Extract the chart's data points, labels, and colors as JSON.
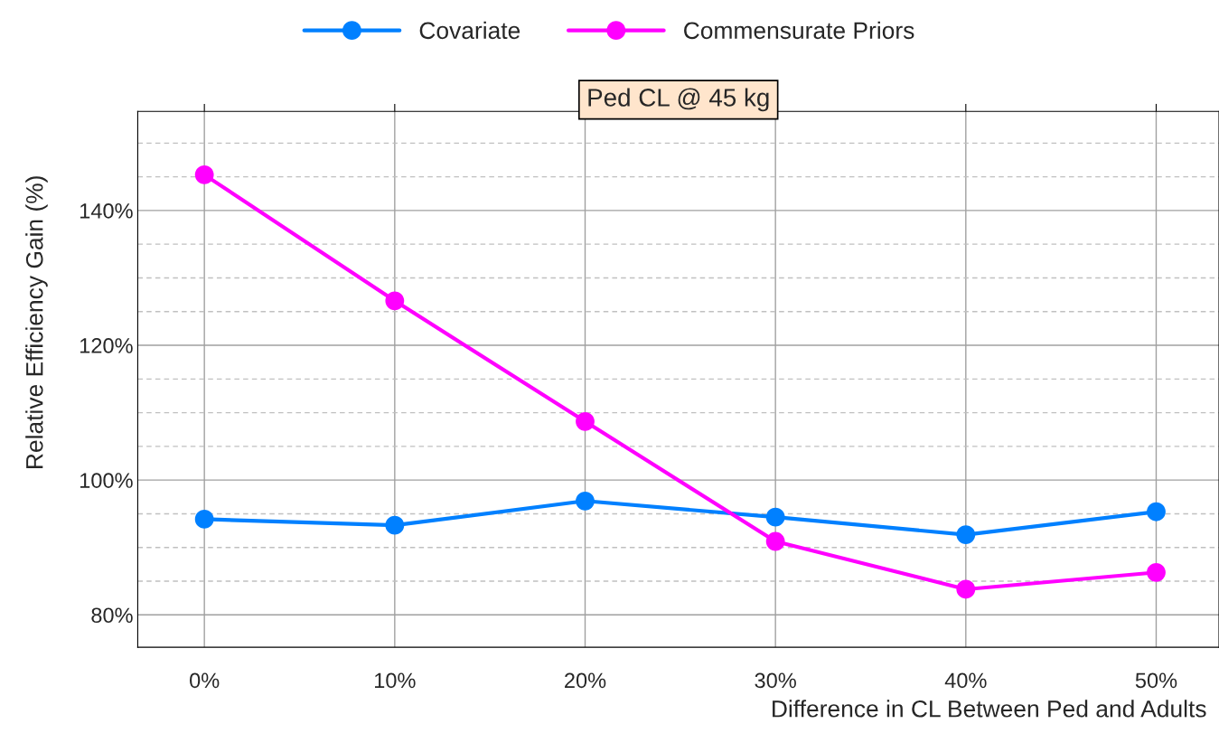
{
  "chart_data": {
    "type": "line",
    "title": "Ped CL @ 45 kg",
    "xlabel": "Difference in CL Between Ped and Adults",
    "ylabel": "Relative Efficiency Gain (%)",
    "x": [
      0,
      10,
      20,
      30,
      40,
      50
    ],
    "series": [
      {
        "name": "Covariate",
        "color": "#0080ff",
        "values": [
          94.2,
          93.3,
          96.9,
          94.5,
          91.9,
          95.3
        ]
      },
      {
        "name": "Commensurate Priors",
        "color": "#ff00ff",
        "values": [
          145.3,
          126.6,
          108.7,
          90.9,
          83.8,
          86.3
        ]
      }
    ],
    "xlim": [
      -3.5,
      53.3
    ],
    "xticks": [
      {
        "value": 0,
        "label": "0%"
      },
      {
        "value": 10,
        "label": "10%"
      },
      {
        "value": 20,
        "label": "20%"
      },
      {
        "value": 30,
        "label": "30%"
      },
      {
        "value": 40,
        "label": "40%"
      },
      {
        "value": 50,
        "label": "50%"
      }
    ],
    "ylim": [
      75.2,
      154.7
    ],
    "yticks": [
      {
        "value": 80,
        "label": "80%"
      },
      {
        "value": 85,
        "label": null
      },
      {
        "value": 90,
        "label": null
      },
      {
        "value": 95,
        "label": null
      },
      {
        "value": 100,
        "label": "100%"
      },
      {
        "value": 105,
        "label": null
      },
      {
        "value": 110,
        "label": null
      },
      {
        "value": 115,
        "label": null
      },
      {
        "value": 120,
        "label": "120%"
      },
      {
        "value": 125,
        "label": null
      },
      {
        "value": 130,
        "label": null
      },
      {
        "value": 135,
        "label": null
      },
      {
        "value": 140,
        "label": "140%"
      },
      {
        "value": 145,
        "label": null
      },
      {
        "value": 150,
        "label": null
      }
    ],
    "grid": true,
    "legend": "top",
    "marker": "circle",
    "line_style": "solid"
  }
}
